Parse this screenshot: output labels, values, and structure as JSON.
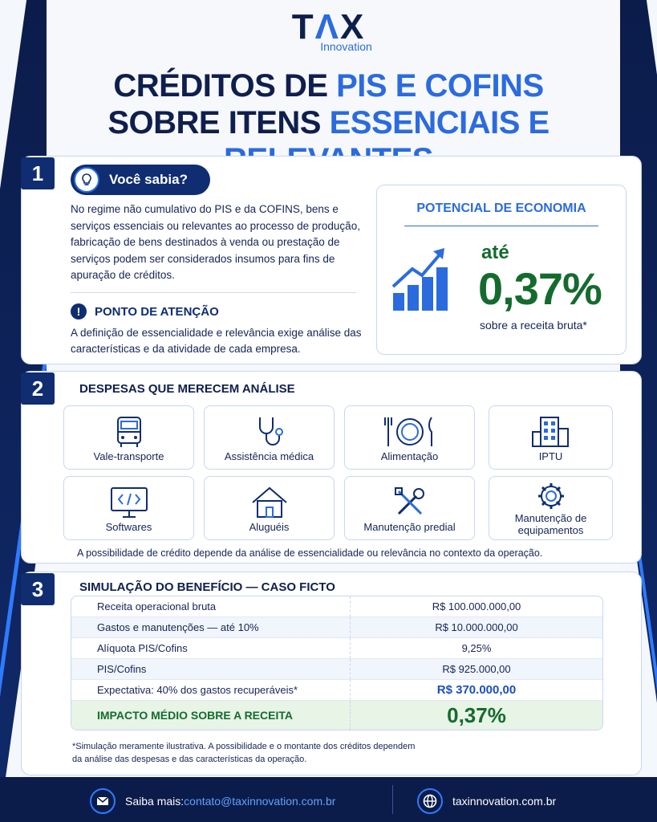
{
  "logo": {
    "brand_t": "T",
    "brand_a": "Λ",
    "brand_x": "X",
    "sub": "Innovation"
  },
  "headline": {
    "l1_a": "CRÉDITOS DE ",
    "l1_b": "PIS E COFINS",
    "l2_a": "SOBRE ITENS ",
    "l2_b": "ESSENCIAIS E RELEVANTES"
  },
  "s1": {
    "number": "1",
    "pill": "Você sabia?",
    "paragraph": "No regime não cumulativo do PIS e da COFINS, bens e serviços essenciais ou relevantes ao processo de produção, fabricação de bens destinados à venda ou prestação de serviços podem ser considerados insumos para fins de apuração de créditos.",
    "attention_title": "PONTO DE ATENÇÃO",
    "attention_text": "A definição de essencialidade e relevância exige análise das características e da atividade de cada empresa.",
    "econ_title": "POTENCIAL DE ECONOMIA",
    "econ_prefix": "até",
    "econ_value": "0,37%",
    "econ_sub": "sobre a receita bruta*"
  },
  "s2": {
    "number": "2",
    "title": "DESPESAS QUE MERECEM ANÁLISE",
    "items": [
      {
        "label": "Vale-transporte",
        "icon": "bus-icon"
      },
      {
        "label": "Assistência médica",
        "icon": "stethoscope-icon"
      },
      {
        "label": "Alimentação",
        "icon": "cutlery-icon"
      },
      {
        "label": "IPTU",
        "icon": "building-icon"
      },
      {
        "label": "Softwares",
        "icon": "code-monitor-icon"
      },
      {
        "label": "Aluguéis",
        "icon": "house-icon"
      },
      {
        "label": "Manutenção predial",
        "icon": "tools-icon"
      },
      {
        "label": "Manutenção de equipamentos",
        "icon": "gear-icon"
      }
    ],
    "note": "A possibilidade de crédito depende da análise de essencialidade ou relevância no contexto da operação."
  },
  "s3": {
    "number": "3",
    "title": "SIMULAÇÃO DO BENEFÍCIO — CASO FICTO",
    "rows": [
      {
        "k": "Receita operacional bruta",
        "v": "R$ 100.000.000,00"
      },
      {
        "k": "Gastos e manutenções — até 10%",
        "v": "R$ 10.000.000,00"
      },
      {
        "k": "Alíquota PIS/Cofins",
        "v": "9,25%"
      },
      {
        "k": "PIS/Cofins",
        "v": "R$ 925.000,00"
      },
      {
        "k": "Expectativa: 40% dos gastos recuperáveis*",
        "v": "R$ 370.000,00"
      }
    ],
    "total_k": "IMPACTO MÉDIO SOBRE A RECEITA",
    "total_v": "0,37%",
    "footnote": "*Simulação meramente ilustrativa. A possibilidade e o montante dos créditos dependem da análise das despesas e das características da operação."
  },
  "footer": {
    "saiba": "Saiba mais: ",
    "email": "contato@taxinnovation.com.br",
    "site": "taxinnovation.com.br"
  },
  "colors": {
    "navy": "#0f2d70",
    "blue": "#2b6bde",
    "green": "#156b2e"
  }
}
